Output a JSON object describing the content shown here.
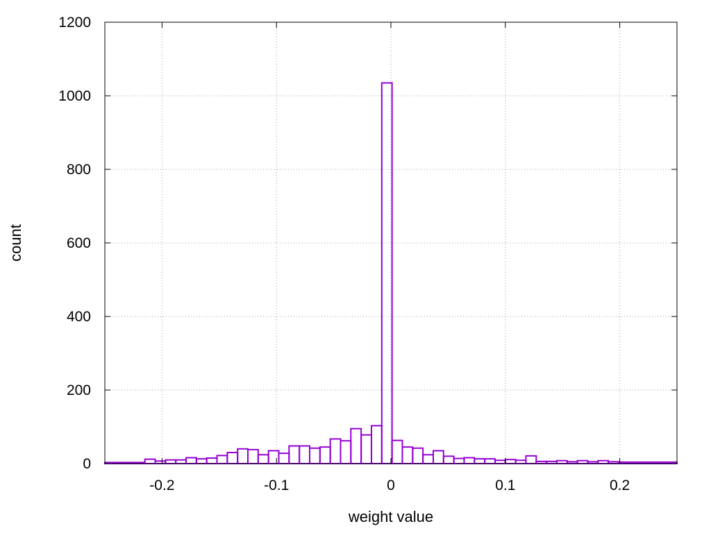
{
  "chart_data": {
    "type": "bar",
    "title": "",
    "xlabel": "weight value",
    "ylabel": "count",
    "xlim": [
      -0.25,
      0.25
    ],
    "ylim": [
      0,
      1200
    ],
    "grid": true,
    "legend": "none",
    "bar_color": "#9400d3",
    "grid_color": "#a0a0a0",
    "x_ticks": [
      {
        "value": -0.2,
        "label": "-0.2"
      },
      {
        "value": -0.1,
        "label": "-0.1"
      },
      {
        "value": 0,
        "label": "0"
      },
      {
        "value": 0.1,
        "label": "0.1"
      },
      {
        "value": 0.2,
        "label": "0.2"
      }
    ],
    "y_ticks": [
      {
        "value": 0,
        "label": "0"
      },
      {
        "value": 200,
        "label": "200"
      },
      {
        "value": 400,
        "label": "400"
      },
      {
        "value": 600,
        "label": "600"
      },
      {
        "value": 800,
        "label": "800"
      },
      {
        "value": 1000,
        "label": "1000"
      },
      {
        "value": 1200,
        "label": "1200"
      }
    ],
    "bins": [
      {
        "start": -0.25,
        "end": -0.215,
        "count": 3
      },
      {
        "start": -0.215,
        "end": -0.206,
        "count": 12
      },
      {
        "start": -0.206,
        "end": -0.197,
        "count": 7
      },
      {
        "start": -0.197,
        "end": -0.188,
        "count": 10
      },
      {
        "start": -0.188,
        "end": -0.179,
        "count": 10
      },
      {
        "start": -0.179,
        "end": -0.17,
        "count": 16
      },
      {
        "start": -0.17,
        "end": -0.161,
        "count": 13
      },
      {
        "start": -0.161,
        "end": -0.152,
        "count": 15
      },
      {
        "start": -0.152,
        "end": -0.143,
        "count": 22
      },
      {
        "start": -0.143,
        "end": -0.134,
        "count": 30
      },
      {
        "start": -0.134,
        "end": -0.125,
        "count": 40
      },
      {
        "start": -0.125,
        "end": -0.116,
        "count": 38
      },
      {
        "start": -0.116,
        "end": -0.107,
        "count": 24
      },
      {
        "start": -0.107,
        "end": -0.098,
        "count": 35
      },
      {
        "start": -0.098,
        "end": -0.089,
        "count": 28
      },
      {
        "start": -0.089,
        "end": -0.08,
        "count": 48
      },
      {
        "start": -0.08,
        "end": -0.071,
        "count": 48
      },
      {
        "start": -0.071,
        "end": -0.062,
        "count": 42
      },
      {
        "start": -0.062,
        "end": -0.053,
        "count": 45
      },
      {
        "start": -0.053,
        "end": -0.044,
        "count": 67
      },
      {
        "start": -0.044,
        "end": -0.035,
        "count": 62
      },
      {
        "start": -0.035,
        "end": -0.026,
        "count": 95
      },
      {
        "start": -0.026,
        "end": -0.017,
        "count": 78
      },
      {
        "start": -0.017,
        "end": -0.008,
        "count": 103
      },
      {
        "start": -0.008,
        "end": 0.001,
        "count": 1035
      },
      {
        "start": 0.001,
        "end": 0.01,
        "count": 63
      },
      {
        "start": 0.01,
        "end": 0.019,
        "count": 45
      },
      {
        "start": 0.019,
        "end": 0.028,
        "count": 42
      },
      {
        "start": 0.028,
        "end": 0.037,
        "count": 24
      },
      {
        "start": 0.037,
        "end": 0.046,
        "count": 35
      },
      {
        "start": 0.046,
        "end": 0.055,
        "count": 20
      },
      {
        "start": 0.055,
        "end": 0.064,
        "count": 14
      },
      {
        "start": 0.064,
        "end": 0.073,
        "count": 16
      },
      {
        "start": 0.073,
        "end": 0.082,
        "count": 13
      },
      {
        "start": 0.082,
        "end": 0.091,
        "count": 13
      },
      {
        "start": 0.091,
        "end": 0.1,
        "count": 9
      },
      {
        "start": 0.1,
        "end": 0.109,
        "count": 11
      },
      {
        "start": 0.109,
        "end": 0.118,
        "count": 9
      },
      {
        "start": 0.118,
        "end": 0.127,
        "count": 21
      },
      {
        "start": 0.127,
        "end": 0.136,
        "count": 6
      },
      {
        "start": 0.136,
        "end": 0.145,
        "count": 6
      },
      {
        "start": 0.145,
        "end": 0.154,
        "count": 8
      },
      {
        "start": 0.154,
        "end": 0.163,
        "count": 5
      },
      {
        "start": 0.163,
        "end": 0.172,
        "count": 8
      },
      {
        "start": 0.172,
        "end": 0.181,
        "count": 5
      },
      {
        "start": 0.181,
        "end": 0.19,
        "count": 8
      },
      {
        "start": 0.19,
        "end": 0.199,
        "count": 5
      },
      {
        "start": 0.199,
        "end": 0.25,
        "count": 4
      }
    ]
  }
}
